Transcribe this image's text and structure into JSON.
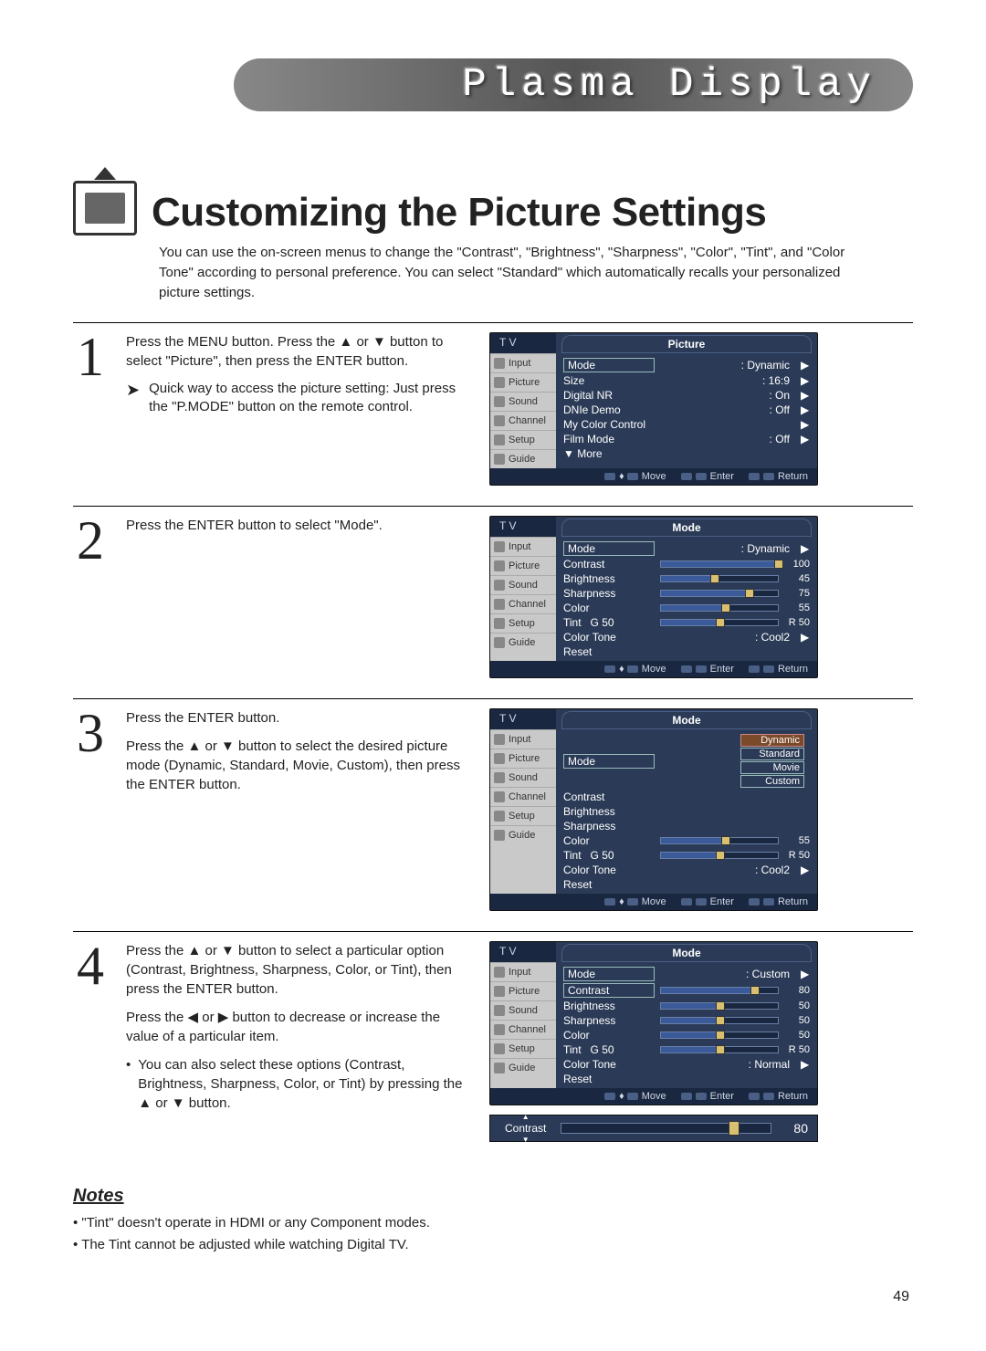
{
  "banner": "Plasma Display",
  "title": "Customizing the Picture Settings",
  "intro": "You can use the on-screen menus to change the \"Contrast\", \"Brightness\", \"Sharpness\", \"Color\", \"Tint\", and \"Color Tone\" according to personal preference. You can select \"Standard\" which automatically recalls your personalized picture settings.",
  "steps": {
    "s1": {
      "num": "1",
      "text": "Press the MENU button. Press the ▲ or ▼ button to select \"Picture\", then press the ENTER button.",
      "tip": "Quick way to access the picture setting: Just press the \"P.MODE\" button on the remote control."
    },
    "s2": {
      "num": "2",
      "text": "Press the ENTER button to select \"Mode\"."
    },
    "s3": {
      "num": "3",
      "text1": "Press the ENTER button.",
      "text2": "Press the ▲ or ▼ button to select the desired picture mode (Dynamic, Standard, Movie, Custom), then press the ENTER button."
    },
    "s4": {
      "num": "4",
      "text1": "Press the ▲ or ▼ button to select a particular option (Contrast, Brightness, Sharpness, Color, or Tint), then press the ENTER button.",
      "text2": "Press the ◀ or ▶ button to decrease or increase the value of a particular item.",
      "bullet": "You can also select these options (Contrast, Brightness, Sharpness, Color, or Tint) by pressing the ▲ or ▼ button."
    }
  },
  "osd_common": {
    "tv": "T V",
    "side": [
      "Input",
      "Picture",
      "Sound",
      "Channel",
      "Setup",
      "Guide"
    ],
    "footer_move": "Move",
    "footer_enter": "Enter",
    "footer_return": "Return"
  },
  "osd1": {
    "title": "Picture",
    "rows": [
      {
        "k": "Mode",
        "v": ": Dynamic",
        "boxed": true
      },
      {
        "k": "Size",
        "v": ": 16:9"
      },
      {
        "k": "Digital NR",
        "v": ": On"
      },
      {
        "k": "DNIe Demo",
        "v": ": Off"
      },
      {
        "k": "My Color Control",
        "v": ""
      },
      {
        "k": "Film Mode",
        "v": ": Off"
      },
      {
        "k": "▼ More",
        "v": "",
        "noarrow": true
      }
    ]
  },
  "osd2": {
    "title": "Mode",
    "mode_row": {
      "k": "Mode",
      "v": ": Dynamic",
      "boxed": true
    },
    "sliders": [
      {
        "k": "Contrast",
        "fill": "100%",
        "val": "100"
      },
      {
        "k": "Brightness",
        "fill": "45%",
        "val": "45"
      },
      {
        "k": "Sharpness",
        "fill": "75%",
        "val": "75"
      },
      {
        "k": "Color",
        "fill": "55%",
        "val": "55"
      }
    ],
    "tint": {
      "k": "Tint",
      "left": "G 50",
      "right": "R 50",
      "fill": "50%"
    },
    "colortone": {
      "k": "Color Tone",
      "v": ": Cool2"
    },
    "reset": "Reset"
  },
  "osd3": {
    "title": "Mode",
    "mode_row": {
      "k": "Mode"
    },
    "options": [
      "Dynamic",
      "Standard",
      "Movie",
      "Custom"
    ],
    "sliders": [
      {
        "k": "Contrast"
      },
      {
        "k": "Brightness"
      },
      {
        "k": "Sharpness"
      },
      {
        "k": "Color",
        "fill": "55%",
        "val": "55"
      }
    ],
    "tint": {
      "k": "Tint",
      "left": "G 50",
      "right": "R 50",
      "fill": "50%"
    },
    "colortone": {
      "k": "Color Tone",
      "v": ": Cool2"
    },
    "reset": "Reset"
  },
  "osd4": {
    "title": "Mode",
    "mode_row": {
      "k": "Mode",
      "v": ": Custom"
    },
    "sliders": [
      {
        "k": "Contrast",
        "fill": "80%",
        "val": "80",
        "boxed": true
      },
      {
        "k": "Brightness",
        "fill": "50%",
        "val": "50"
      },
      {
        "k": "Sharpness",
        "fill": "50%",
        "val": "50"
      },
      {
        "k": "Color",
        "fill": "50%",
        "val": "50"
      }
    ],
    "tint": {
      "k": "Tint",
      "left": "G 50",
      "right": "R 50",
      "fill": "50%"
    },
    "colortone": {
      "k": "Color Tone",
      "v": ": Normal"
    },
    "reset": "Reset"
  },
  "adjust": {
    "label": "Contrast",
    "val": "80",
    "fill": "80%"
  },
  "notes_title": "Notes",
  "notes": [
    "\"Tint\" doesn't operate in HDMI or any Component modes.",
    "The Tint cannot be adjusted while watching Digital TV."
  ],
  "page_num": "49",
  "colors": {
    "osd_bg": "#2b3b57",
    "osd_dark": "#1a2740",
    "osd_side": "#c9c9c9",
    "highlight": "#7b4a2a",
    "slider_handle": "#d8c070"
  }
}
